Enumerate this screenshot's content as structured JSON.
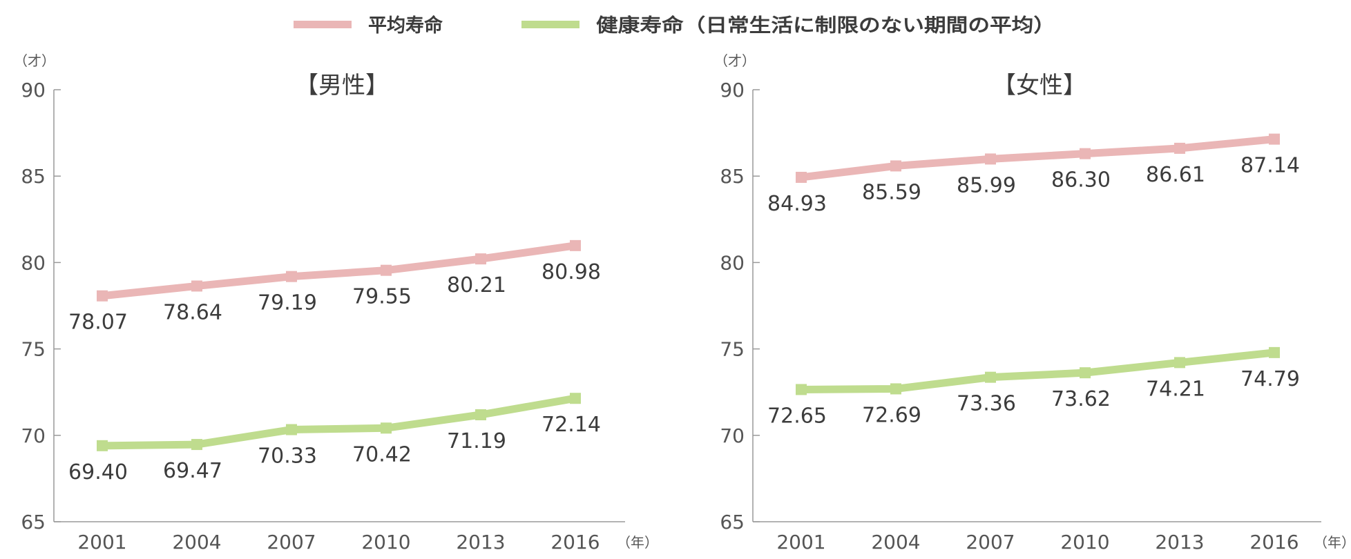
{
  "legend": {
    "items": [
      {
        "label": "平均寿命",
        "color": "#eab6b6"
      },
      {
        "label": "健康寿命（日常生活に制限のない期間の平均）",
        "color": "#bfdc8e"
      }
    ]
  },
  "axis": {
    "y_unit": "（才）",
    "x_unit": "（年）"
  },
  "colors": {
    "life": "#eab6b6",
    "health": "#bfdc8e",
    "axis": "#999999",
    "tick_text": "#555555",
    "value_text": "#3c3c3c"
  },
  "chart_data": [
    {
      "type": "line",
      "title": "【男性】",
      "x": [
        2001,
        2004,
        2007,
        2010,
        2013,
        2016
      ],
      "ylim": [
        65,
        90
      ],
      "yticks": [
        65,
        70,
        75,
        80,
        85,
        90
      ],
      "grid": false,
      "series": [
        {
          "name": "平均寿命",
          "values": [
            78.07,
            78.64,
            79.19,
            79.55,
            80.21,
            80.98
          ],
          "labels": [
            "78.07",
            "78.64",
            "79.19",
            "79.55",
            "80.21",
            "80.98"
          ]
        },
        {
          "name": "健康寿命（日常生活に制限のない期間の平均）",
          "values": [
            69.4,
            69.47,
            70.33,
            70.42,
            71.19,
            72.14
          ],
          "labels": [
            "69.40",
            "69.47",
            "70.33",
            "70.42",
            "71.19",
            "72.14"
          ]
        }
      ]
    },
    {
      "type": "line",
      "title": "【女性】",
      "x": [
        2001,
        2004,
        2007,
        2010,
        2013,
        2016
      ],
      "ylim": [
        65,
        90
      ],
      "yticks": [
        65,
        70,
        75,
        80,
        85,
        90
      ],
      "grid": false,
      "series": [
        {
          "name": "平均寿命",
          "values": [
            84.93,
            85.59,
            85.99,
            86.3,
            86.61,
            87.14
          ],
          "labels": [
            "84.93",
            "85.59",
            "85.99",
            "86.30",
            "86.61",
            "87.14"
          ]
        },
        {
          "name": "健康寿命（日常生活に制限のない期間の平均）",
          "values": [
            72.65,
            72.69,
            73.36,
            73.62,
            74.21,
            74.79
          ],
          "labels": [
            "72.65",
            "72.69",
            "73.36",
            "73.62",
            "74.21",
            "74.79"
          ]
        }
      ]
    }
  ]
}
